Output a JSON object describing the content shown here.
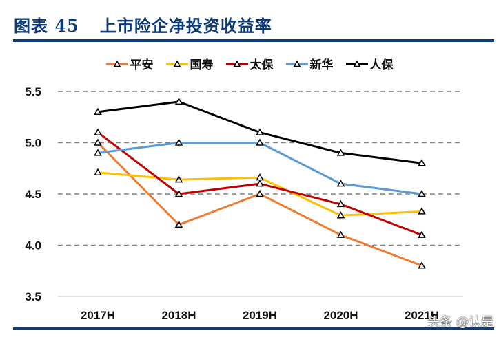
{
  "header": {
    "figure_label": "图表 45",
    "title": "上市险企净投资收益率"
  },
  "watermark": "头条 @认是",
  "chart_data": {
    "type": "line",
    "title": "上市险企净投资收益率",
    "categories": [
      "2017H",
      "2018H",
      "2019H",
      "2020H",
      "2021H"
    ],
    "series": [
      {
        "name": "平安",
        "color": "#ed7d31",
        "values": [
          5.0,
          4.2,
          4.5,
          4.1,
          3.8
        ]
      },
      {
        "name": "国寿",
        "color": "#ffc000",
        "values": [
          4.71,
          4.64,
          4.66,
          4.29,
          4.33
        ]
      },
      {
        "name": "太保",
        "color": "#c00000",
        "values": [
          5.1,
          4.5,
          4.6,
          4.4,
          4.1
        ]
      },
      {
        "name": "新华",
        "color": "#5b9bd5",
        "values": [
          4.9,
          5.0,
          5.0,
          4.6,
          4.5
        ]
      },
      {
        "name": "人保",
        "color": "#000000",
        "values": [
          5.3,
          5.4,
          5.1,
          4.9,
          4.8
        ]
      }
    ],
    "ylim": [
      3.5,
      5.5
    ],
    "yticks": [
      "3.5",
      "4.0",
      "4.5",
      "5.0",
      "5.5"
    ],
    "grid": "horizontal dashed",
    "legend": "top",
    "marker": "hollow-triangle"
  }
}
